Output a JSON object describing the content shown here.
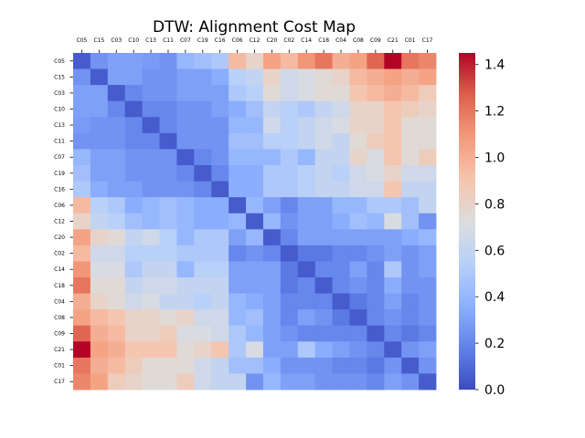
{
  "chart_data": {
    "type": "heatmap",
    "title": "DTW: Alignment Cost Map",
    "xlabel": "",
    "ylabel": "",
    "colormap": "coolwarm",
    "vmin": 0.0,
    "vmax": 1.45,
    "colorbar_ticks": [
      "0.0",
      "0.2",
      "0.4",
      "0.6",
      "0.8",
      "1.0",
      "1.2",
      "1.4"
    ],
    "x_labels": [
      "C05",
      "C15",
      "C03",
      "C10",
      "C13",
      "C11",
      "C07",
      "C19",
      "C16",
      "C06",
      "C12",
      "C20",
      "C02",
      "C14",
      "C18",
      "C04",
      "C08",
      "C09",
      "C21",
      "C01",
      "C17"
    ],
    "y_labels": [
      "C05",
      "C15",
      "C03",
      "C10",
      "C13",
      "C11",
      "C07",
      "C19",
      "C16",
      "C06",
      "C12",
      "C20",
      "C02",
      "C14",
      "C18",
      "C04",
      "C08",
      "C09",
      "C21",
      "C01",
      "C17"
    ],
    "values": [
      [
        0.05,
        0.25,
        0.3,
        0.3,
        0.28,
        0.25,
        0.4,
        0.45,
        0.5,
        0.95,
        0.8,
        1.05,
        0.95,
        1.1,
        1.2,
        1.0,
        1.05,
        1.25,
        1.45,
        1.2,
        1.15
      ],
      [
        0.25,
        0.05,
        0.3,
        0.3,
        0.25,
        0.25,
        0.3,
        0.3,
        0.35,
        0.55,
        0.6,
        0.8,
        0.65,
        0.7,
        0.75,
        0.8,
        0.95,
        1.0,
        1.05,
        1.0,
        1.05
      ],
      [
        0.3,
        0.3,
        0.05,
        0.2,
        0.25,
        0.25,
        0.3,
        0.3,
        0.3,
        0.5,
        0.55,
        0.75,
        0.65,
        0.7,
        0.75,
        0.75,
        0.9,
        0.95,
        1.0,
        0.95,
        0.85
      ],
      [
        0.3,
        0.3,
        0.2,
        0.05,
        0.2,
        0.2,
        0.25,
        0.25,
        0.3,
        0.35,
        0.45,
        0.6,
        0.55,
        0.5,
        0.6,
        0.65,
        0.8,
        0.8,
        0.9,
        0.85,
        0.8
      ],
      [
        0.28,
        0.25,
        0.25,
        0.2,
        0.05,
        0.2,
        0.25,
        0.25,
        0.25,
        0.4,
        0.4,
        0.65,
        0.55,
        0.6,
        0.65,
        0.7,
        0.8,
        0.8,
        0.9,
        0.75,
        0.75
      ],
      [
        0.25,
        0.25,
        0.25,
        0.2,
        0.2,
        0.05,
        0.25,
        0.25,
        0.25,
        0.45,
        0.45,
        0.55,
        0.55,
        0.6,
        0.65,
        0.6,
        0.75,
        0.85,
        0.9,
        0.75,
        0.75
      ],
      [
        0.4,
        0.3,
        0.3,
        0.25,
        0.25,
        0.25,
        0.05,
        0.2,
        0.25,
        0.4,
        0.4,
        0.4,
        0.5,
        0.4,
        0.6,
        0.6,
        0.8,
        0.7,
        0.9,
        0.75,
        0.85
      ],
      [
        0.45,
        0.3,
        0.3,
        0.25,
        0.25,
        0.25,
        0.2,
        0.05,
        0.2,
        0.35,
        0.35,
        0.5,
        0.5,
        0.55,
        0.6,
        0.55,
        0.65,
        0.7,
        0.8,
        0.65,
        0.65
      ],
      [
        0.5,
        0.35,
        0.3,
        0.3,
        0.25,
        0.25,
        0.25,
        0.2,
        0.05,
        0.35,
        0.35,
        0.5,
        0.5,
        0.55,
        0.6,
        0.6,
        0.65,
        0.65,
        0.9,
        0.6,
        0.6
      ],
      [
        0.95,
        0.55,
        0.5,
        0.35,
        0.4,
        0.45,
        0.4,
        0.35,
        0.35,
        0.05,
        0.4,
        0.3,
        0.2,
        0.3,
        0.3,
        0.4,
        0.4,
        0.5,
        0.5,
        0.45,
        0.6
      ],
      [
        0.8,
        0.6,
        0.55,
        0.45,
        0.4,
        0.45,
        0.4,
        0.35,
        0.35,
        0.4,
        0.05,
        0.4,
        0.25,
        0.3,
        0.3,
        0.35,
        0.45,
        0.4,
        0.7,
        0.45,
        0.25
      ],
      [
        1.05,
        0.8,
        0.75,
        0.6,
        0.65,
        0.55,
        0.4,
        0.5,
        0.5,
        0.3,
        0.4,
        0.05,
        0.2,
        0.3,
        0.3,
        0.3,
        0.3,
        0.3,
        0.3,
        0.35,
        0.4
      ],
      [
        0.95,
        0.65,
        0.65,
        0.55,
        0.55,
        0.55,
        0.5,
        0.5,
        0.5,
        0.2,
        0.25,
        0.2,
        0.05,
        0.15,
        0.15,
        0.2,
        0.2,
        0.25,
        0.3,
        0.25,
        0.3
      ],
      [
        1.1,
        0.7,
        0.7,
        0.5,
        0.6,
        0.6,
        0.4,
        0.55,
        0.55,
        0.3,
        0.3,
        0.3,
        0.15,
        0.05,
        0.2,
        0.2,
        0.3,
        0.2,
        0.5,
        0.25,
        0.3
      ],
      [
        1.2,
        0.75,
        0.75,
        0.6,
        0.65,
        0.65,
        0.6,
        0.6,
        0.6,
        0.3,
        0.3,
        0.3,
        0.15,
        0.2,
        0.05,
        0.2,
        0.25,
        0.2,
        0.35,
        0.25,
        0.25
      ],
      [
        1.0,
        0.8,
        0.75,
        0.65,
        0.7,
        0.6,
        0.6,
        0.55,
        0.6,
        0.4,
        0.35,
        0.3,
        0.2,
        0.2,
        0.2,
        0.05,
        0.15,
        0.2,
        0.3,
        0.2,
        0.25
      ],
      [
        1.05,
        0.95,
        0.9,
        0.8,
        0.8,
        0.75,
        0.8,
        0.65,
        0.65,
        0.4,
        0.45,
        0.3,
        0.2,
        0.3,
        0.25,
        0.15,
        0.05,
        0.2,
        0.25,
        0.2,
        0.25
      ],
      [
        1.25,
        1.0,
        0.95,
        0.8,
        0.8,
        0.85,
        0.7,
        0.7,
        0.65,
        0.5,
        0.4,
        0.3,
        0.25,
        0.2,
        0.2,
        0.2,
        0.2,
        0.05,
        0.2,
        0.15,
        0.2
      ],
      [
        1.45,
        1.05,
        1.0,
        0.9,
        0.9,
        0.9,
        0.75,
        0.8,
        0.9,
        0.5,
        0.7,
        0.3,
        0.3,
        0.5,
        0.35,
        0.3,
        0.25,
        0.2,
        0.05,
        0.25,
        0.3
      ],
      [
        1.2,
        1.0,
        0.95,
        0.85,
        0.75,
        0.75,
        0.75,
        0.65,
        0.6,
        0.45,
        0.45,
        0.35,
        0.25,
        0.25,
        0.25,
        0.2,
        0.2,
        0.15,
        0.25,
        0.05,
        0.25
      ],
      [
        1.15,
        1.05,
        0.85,
        0.8,
        0.75,
        0.75,
        0.85,
        0.65,
        0.6,
        0.6,
        0.25,
        0.4,
        0.3,
        0.3,
        0.25,
        0.25,
        0.25,
        0.2,
        0.3,
        0.25,
        0.05
      ]
    ]
  }
}
